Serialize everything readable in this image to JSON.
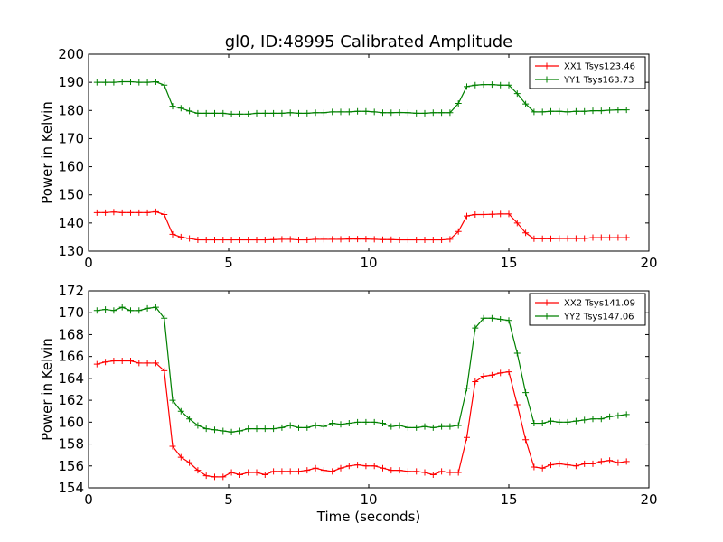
{
  "chart_data": [
    {
      "type": "line",
      "title": "gl0, ID:48995 Calibrated Amplitude",
      "xlabel": "",
      "ylabel": "Power in Kelvin",
      "xlim": [
        0,
        20
      ],
      "ylim": [
        130,
        200
      ],
      "xticks": [
        0,
        5,
        10,
        15,
        20
      ],
      "yticks": [
        130,
        140,
        150,
        160,
        170,
        180,
        190,
        200
      ],
      "grid": false,
      "legend_position": "top-right",
      "x": [
        0.3,
        0.6,
        0.9,
        1.2,
        1.5,
        1.8,
        2.1,
        2.4,
        2.7,
        3.0,
        3.3,
        3.6,
        3.9,
        4.2,
        4.5,
        4.8,
        5.1,
        5.4,
        5.7,
        6.0,
        6.3,
        6.6,
        6.9,
        7.2,
        7.5,
        7.8,
        8.1,
        8.4,
        8.7,
        9.0,
        9.3,
        9.6,
        9.9,
        10.2,
        10.5,
        10.8,
        11.1,
        11.4,
        11.7,
        12.0,
        12.3,
        12.6,
        12.9,
        13.2,
        13.5,
        13.8,
        14.1,
        14.4,
        14.7,
        15.0,
        15.3,
        15.6,
        15.9,
        16.2,
        16.5,
        16.8,
        17.1,
        17.4,
        17.7,
        18.0,
        18.3,
        18.6,
        18.9,
        19.2
      ],
      "series": [
        {
          "name": "XX1 Tsys123.46",
          "color": "#ff0000",
          "values": [
            143.7,
            143.7,
            143.9,
            143.7,
            143.7,
            143.7,
            143.7,
            144.0,
            143.0,
            136.0,
            135.0,
            134.5,
            134.0,
            134.0,
            134.0,
            134.0,
            134.0,
            134.0,
            134.0,
            134.0,
            134.0,
            134.1,
            134.2,
            134.2,
            134.0,
            134.0,
            134.2,
            134.2,
            134.2,
            134.2,
            134.3,
            134.3,
            134.3,
            134.2,
            134.1,
            134.1,
            134.0,
            134.0,
            134.0,
            134.0,
            134.0,
            134.0,
            134.2,
            137.0,
            142.5,
            143.0,
            143.0,
            143.1,
            143.2,
            143.2,
            140.0,
            136.5,
            134.4,
            134.4,
            134.4,
            134.5,
            134.5,
            134.5,
            134.5,
            134.8,
            134.8,
            134.8,
            134.8,
            134.8
          ]
        },
        {
          "name": "YY1 Tsys163.73",
          "color": "#008000",
          "values": [
            190.0,
            190.0,
            190.0,
            190.2,
            190.2,
            190.0,
            190.0,
            190.2,
            189.0,
            181.5,
            180.8,
            179.8,
            179.0,
            179.0,
            179.0,
            179.0,
            178.7,
            178.7,
            178.7,
            179.0,
            179.0,
            179.0,
            179.0,
            179.2,
            179.0,
            179.0,
            179.2,
            179.2,
            179.5,
            179.5,
            179.5,
            179.7,
            179.7,
            179.5,
            179.2,
            179.2,
            179.3,
            179.2,
            179.0,
            179.0,
            179.2,
            179.2,
            179.2,
            182.5,
            188.5,
            189.0,
            189.2,
            189.2,
            189.0,
            189.0,
            186.0,
            182.3,
            179.5,
            179.5,
            179.7,
            179.7,
            179.5,
            179.7,
            179.7,
            179.9,
            179.9,
            180.1,
            180.2,
            180.2
          ]
        }
      ]
    },
    {
      "type": "line",
      "title": "",
      "xlabel": "Time (seconds)",
      "ylabel": "Power in Kelvin",
      "xlim": [
        0,
        20
      ],
      "ylim": [
        154,
        172
      ],
      "xticks": [
        0,
        5,
        10,
        15,
        20
      ],
      "yticks": [
        154,
        156,
        158,
        160,
        162,
        164,
        166,
        168,
        170,
        172
      ],
      "grid": false,
      "legend_position": "top-right",
      "x": [
        0.3,
        0.6,
        0.9,
        1.2,
        1.5,
        1.8,
        2.1,
        2.4,
        2.7,
        3.0,
        3.3,
        3.6,
        3.9,
        4.2,
        4.5,
        4.8,
        5.1,
        5.4,
        5.7,
        6.0,
        6.3,
        6.6,
        6.9,
        7.2,
        7.5,
        7.8,
        8.1,
        8.4,
        8.7,
        9.0,
        9.3,
        9.6,
        9.9,
        10.2,
        10.5,
        10.8,
        11.1,
        11.4,
        11.7,
        12.0,
        12.3,
        12.6,
        12.9,
        13.2,
        13.5,
        13.8,
        14.1,
        14.4,
        14.7,
        15.0,
        15.3,
        15.6,
        15.9,
        16.2,
        16.5,
        16.8,
        17.1,
        17.4,
        17.7,
        18.0,
        18.3,
        18.6,
        18.9,
        19.2
      ],
      "series": [
        {
          "name": "XX2 Tsys141.09",
          "color": "#ff0000",
          "values": [
            165.3,
            165.5,
            165.6,
            165.6,
            165.6,
            165.4,
            165.4,
            165.4,
            164.7,
            157.8,
            156.8,
            156.3,
            155.6,
            155.1,
            155.0,
            155.0,
            155.4,
            155.2,
            155.4,
            155.4,
            155.2,
            155.5,
            155.5,
            155.5,
            155.5,
            155.6,
            155.8,
            155.6,
            155.5,
            155.8,
            156.0,
            156.1,
            156.0,
            156.0,
            155.8,
            155.6,
            155.6,
            155.5,
            155.5,
            155.4,
            155.2,
            155.5,
            155.4,
            155.4,
            158.6,
            163.7,
            164.2,
            164.3,
            164.5,
            164.6,
            161.6,
            158.4,
            155.9,
            155.8,
            156.1,
            156.2,
            156.1,
            156.0,
            156.2,
            156.2,
            156.4,
            156.5,
            156.3,
            156.4
          ]
        },
        {
          "name": "YY2 Tsys147.06",
          "color": "#008000",
          "values": [
            170.2,
            170.3,
            170.2,
            170.5,
            170.2,
            170.2,
            170.4,
            170.5,
            169.5,
            162.0,
            161.0,
            160.3,
            159.7,
            159.4,
            159.3,
            159.2,
            159.1,
            159.2,
            159.4,
            159.4,
            159.4,
            159.4,
            159.5,
            159.7,
            159.5,
            159.5,
            159.7,
            159.6,
            159.9,
            159.8,
            159.9,
            160.0,
            160.0,
            160.0,
            159.9,
            159.6,
            159.7,
            159.5,
            159.5,
            159.6,
            159.5,
            159.6,
            159.6,
            159.7,
            163.1,
            168.6,
            169.5,
            169.5,
            169.4,
            169.3,
            166.3,
            162.7,
            159.9,
            159.9,
            160.1,
            160.0,
            160.0,
            160.1,
            160.2,
            160.3,
            160.3,
            160.5,
            160.6,
            160.7
          ]
        }
      ]
    }
  ]
}
